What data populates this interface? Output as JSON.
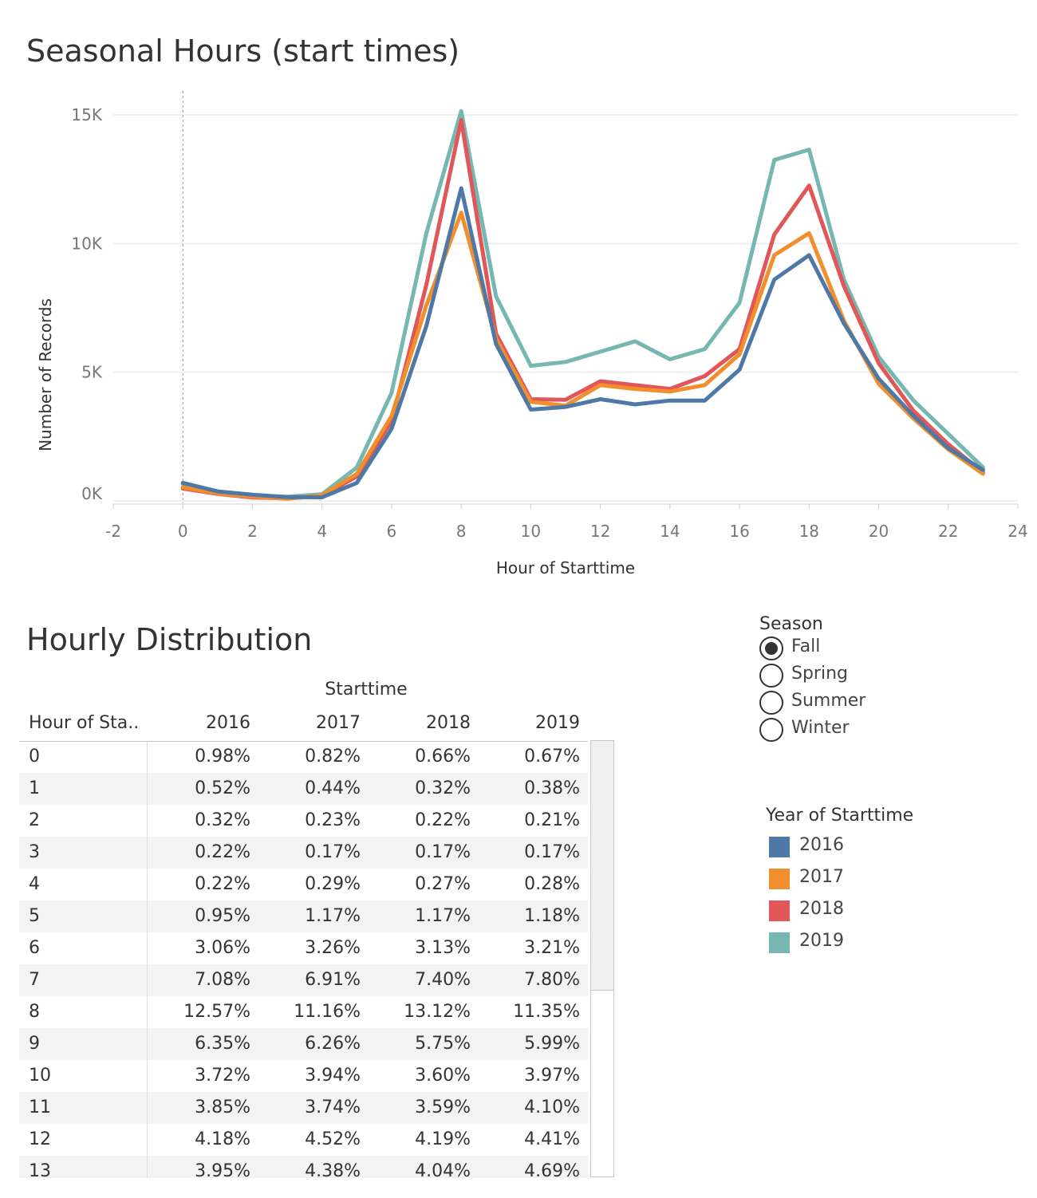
{
  "chart_data": {
    "type": "line",
    "title": "Seasonal Hours (start times)",
    "xlabel": "Hour of Starttime",
    "ylabel": "Number of Records",
    "xlim": [
      -2,
      24
    ],
    "ylim": [
      0,
      15000
    ],
    "x_ticks": [
      "-2",
      "0",
      "2",
      "4",
      "6",
      "8",
      "10",
      "12",
      "14",
      "16",
      "18",
      "20",
      "22",
      "24"
    ],
    "y_ticks": [
      "0K",
      "5K",
      "10K",
      "15K"
    ],
    "x": [
      0,
      1,
      2,
      3,
      4,
      5,
      6,
      7,
      8,
      9,
      10,
      11,
      12,
      13,
      14,
      15,
      16,
      17,
      18,
      19,
      20,
      21,
      22,
      23
    ],
    "series": [
      {
        "name": "2019",
        "color": "#76b7b2",
        "values": [
          650,
          360,
          210,
          160,
          260,
          1300,
          4200,
          10400,
          15150,
          7950,
          5250,
          5400,
          5800,
          6200,
          5500,
          5900,
          7700,
          13250,
          13650,
          8600,
          5600,
          3900,
          2600,
          1300
        ]
      },
      {
        "name": "2018",
        "color": "#e15759",
        "values": [
          480,
          270,
          130,
          100,
          190,
          950,
          3100,
          8400,
          14800,
          6500,
          3950,
          3930,
          4650,
          4500,
          4350,
          4850,
          5900,
          10350,
          12250,
          8350,
          5350,
          3500,
          2200,
          1100
        ]
      },
      {
        "name": "2017",
        "color": "#f28e2b",
        "values": [
          530,
          290,
          160,
          80,
          220,
          1050,
          3300,
          7600,
          11200,
          6300,
          3850,
          3700,
          4500,
          4350,
          4250,
          4500,
          5700,
          9550,
          10400,
          7000,
          4550,
          3200,
          2000,
          1050
        ]
      },
      {
        "name": "2016",
        "color": "#4e79a7",
        "values": [
          700,
          370,
          240,
          150,
          140,
          700,
          2800,
          6800,
          12150,
          6100,
          3550,
          3650,
          3950,
          3750,
          3900,
          3900,
          5100,
          8600,
          9550,
          6900,
          4750,
          3300,
          2050,
          1200
        ]
      }
    ]
  },
  "table": {
    "title": "Hourly Distribution",
    "column_group": "Starttime",
    "row_header": "Hour of Sta..",
    "columns": [
      "2016",
      "2017",
      "2018",
      "2019"
    ],
    "rows": [
      {
        "hour": "0",
        "values": [
          "0.98%",
          "0.82%",
          "0.66%",
          "0.67%"
        ]
      },
      {
        "hour": "1",
        "values": [
          "0.52%",
          "0.44%",
          "0.32%",
          "0.38%"
        ]
      },
      {
        "hour": "2",
        "values": [
          "0.32%",
          "0.23%",
          "0.22%",
          "0.21%"
        ]
      },
      {
        "hour": "3",
        "values": [
          "0.22%",
          "0.17%",
          "0.17%",
          "0.17%"
        ]
      },
      {
        "hour": "4",
        "values": [
          "0.22%",
          "0.29%",
          "0.27%",
          "0.28%"
        ]
      },
      {
        "hour": "5",
        "values": [
          "0.95%",
          "1.17%",
          "1.17%",
          "1.18%"
        ]
      },
      {
        "hour": "6",
        "values": [
          "3.06%",
          "3.26%",
          "3.13%",
          "3.21%"
        ]
      },
      {
        "hour": "7",
        "values": [
          "7.08%",
          "6.91%",
          "7.40%",
          "7.80%"
        ]
      },
      {
        "hour": "8",
        "values": [
          "12.57%",
          "11.16%",
          "13.12%",
          "11.35%"
        ]
      },
      {
        "hour": "9",
        "values": [
          "6.35%",
          "6.26%",
          "5.75%",
          "5.99%"
        ]
      },
      {
        "hour": "10",
        "values": [
          "3.72%",
          "3.94%",
          "3.60%",
          "3.97%"
        ]
      },
      {
        "hour": "11",
        "values": [
          "3.85%",
          "3.74%",
          "3.59%",
          "4.10%"
        ]
      },
      {
        "hour": "12",
        "values": [
          "4.18%",
          "4.52%",
          "4.19%",
          "4.41%"
        ]
      },
      {
        "hour": "13",
        "values": [
          "3.95%",
          "4.38%",
          "4.04%",
          "4.69%"
        ]
      }
    ]
  },
  "season_filter": {
    "title": "Season",
    "selected": "Fall",
    "options": [
      "Fall",
      "Spring",
      "Summer",
      "Winter"
    ]
  },
  "year_legend": {
    "title": "Year of Starttime",
    "items": [
      {
        "label": "2016",
        "color": "#4e79a7"
      },
      {
        "label": "2017",
        "color": "#f28e2b"
      },
      {
        "label": "2018",
        "color": "#e15759"
      },
      {
        "label": "2019",
        "color": "#76b7b2"
      }
    ]
  }
}
